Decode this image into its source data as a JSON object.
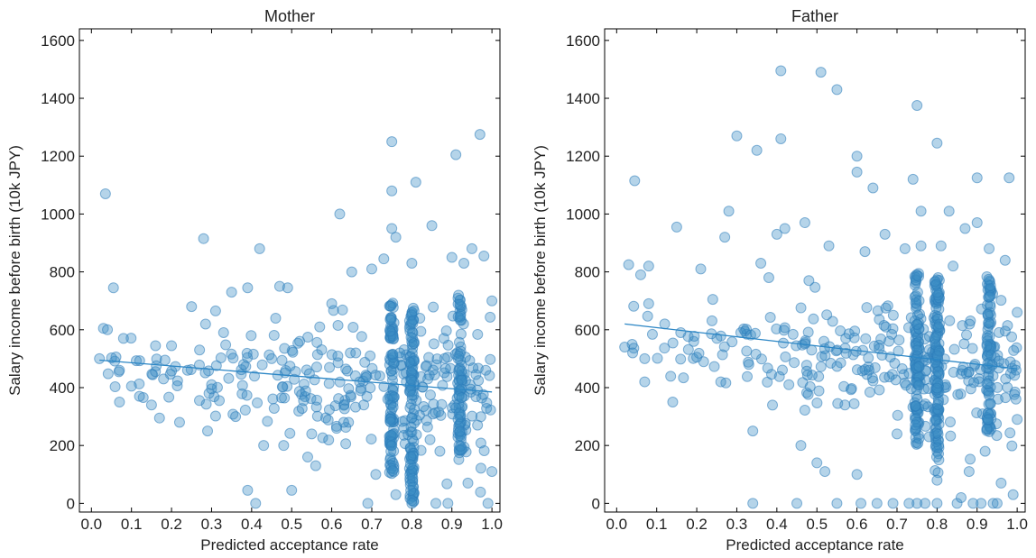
{
  "chart_data": [
    {
      "type": "scatter",
      "title": "Mother",
      "xlabel": "Predicted acceptance rate",
      "ylabel": "Salary income before birth (10k JPY)",
      "xlim": [
        -0.03,
        1.02
      ],
      "ylim": [
        -30,
        1640
      ],
      "xticks": [
        "0.0",
        "0.1",
        "0.2",
        "0.3",
        "0.4",
        "0.5",
        "0.6",
        "0.7",
        "0.8",
        "0.9",
        "1.0"
      ],
      "yticks": [
        "0",
        "200",
        "400",
        "600",
        "800",
        "1000",
        "1200",
        "1400",
        "1600"
      ],
      "grid": false,
      "color": "#3d8fc6",
      "trend_line": {
        "x": [
          0.02,
          1.0
        ],
        "y": [
          495,
          385
        ]
      },
      "points": [
        {
          "x": 0.02,
          "y": 500
        },
        {
          "x": 0.03,
          "y": 605
        },
        {
          "x": 0.035,
          "y": 1070
        },
        {
          "x": 0.04,
          "y": 600
        },
        {
          "x": 0.055,
          "y": 745
        },
        {
          "x": 0.07,
          "y": 460
        },
        {
          "x": 0.07,
          "y": 350
        },
        {
          "x": 0.08,
          "y": 570
        },
        {
          "x": 0.1,
          "y": 405
        },
        {
          "x": 0.12,
          "y": 370
        },
        {
          "x": 0.15,
          "y": 340
        },
        {
          "x": 0.16,
          "y": 545
        },
        {
          "x": 0.17,
          "y": 295
        },
        {
          "x": 0.18,
          "y": 430
        },
        {
          "x": 0.2,
          "y": 545
        },
        {
          "x": 0.22,
          "y": 280
        },
        {
          "x": 0.24,
          "y": 460
        },
        {
          "x": 0.25,
          "y": 680
        },
        {
          "x": 0.27,
          "y": 530
        },
        {
          "x": 0.28,
          "y": 915
        },
        {
          "x": 0.29,
          "y": 250
        },
        {
          "x": 0.3,
          "y": 410
        },
        {
          "x": 0.31,
          "y": 665
        },
        {
          "x": 0.33,
          "y": 590
        },
        {
          "x": 0.35,
          "y": 730
        },
        {
          "x": 0.36,
          "y": 300
        },
        {
          "x": 0.38,
          "y": 480
        },
        {
          "x": 0.39,
          "y": 745
        },
        {
          "x": 0.39,
          "y": 45
        },
        {
          "x": 0.41,
          "y": 0
        },
        {
          "x": 0.42,
          "y": 880
        },
        {
          "x": 0.43,
          "y": 200
        },
        {
          "x": 0.45,
          "y": 500
        },
        {
          "x": 0.46,
          "y": 640
        },
        {
          "x": 0.47,
          "y": 750
        },
        {
          "x": 0.48,
          "y": 200
        },
        {
          "x": 0.49,
          "y": 745
        },
        {
          "x": 0.5,
          "y": 45
        },
        {
          "x": 0.52,
          "y": 560
        },
        {
          "x": 0.54,
          "y": 160
        },
        {
          "x": 0.55,
          "y": 240
        },
        {
          "x": 0.56,
          "y": 130
        },
        {
          "x": 0.57,
          "y": 610
        },
        {
          "x": 0.6,
          "y": 690
        },
        {
          "x": 0.62,
          "y": 1000
        },
        {
          "x": 0.63,
          "y": 280
        },
        {
          "x": 0.65,
          "y": 800
        },
        {
          "x": 0.66,
          "y": 520
        },
        {
          "x": 0.68,
          "y": 340
        },
        {
          "x": 0.69,
          "y": 0
        },
        {
          "x": 0.7,
          "y": 810
        },
        {
          "x": 0.71,
          "y": 100
        },
        {
          "x": 0.72,
          "y": 440
        },
        {
          "x": 0.73,
          "y": 845
        },
        {
          "x": 0.74,
          "y": 360
        },
        {
          "x": 0.75,
          "y": 1250
        },
        {
          "x": 0.75,
          "y": 1080
        },
        {
          "x": 0.75,
          "y": 950
        },
        {
          "x": 0.76,
          "y": 920
        },
        {
          "x": 0.76,
          "y": 30
        },
        {
          "x": 0.77,
          "y": 520
        },
        {
          "x": 0.78,
          "y": 260
        },
        {
          "x": 0.8,
          "y": 0
        },
        {
          "x": 0.8,
          "y": 830
        },
        {
          "x": 0.81,
          "y": 1110
        },
        {
          "x": 0.82,
          "y": 640
        },
        {
          "x": 0.84,
          "y": 430
        },
        {
          "x": 0.85,
          "y": 960
        },
        {
          "x": 0.86,
          "y": 0
        },
        {
          "x": 0.87,
          "y": 180
        },
        {
          "x": 0.88,
          "y": 570
        },
        {
          "x": 0.89,
          "y": 0
        },
        {
          "x": 0.9,
          "y": 850
        },
        {
          "x": 0.91,
          "y": 1205
        },
        {
          "x": 0.91,
          "y": 330
        },
        {
          "x": 0.92,
          "y": 250
        },
        {
          "x": 0.93,
          "y": 830
        },
        {
          "x": 0.94,
          "y": 70
        },
        {
          "x": 0.95,
          "y": 880
        },
        {
          "x": 0.96,
          "y": 445
        },
        {
          "x": 0.97,
          "y": 1275
        },
        {
          "x": 0.98,
          "y": 855
        },
        {
          "x": 0.99,
          "y": 0
        },
        {
          "x": 1.0,
          "y": 700
        },
        {
          "x": 1.0,
          "y": 110
        }
      ],
      "dense_columns": [
        {
          "x": 0.75,
          "ymin": 100,
          "ymax": 700,
          "n": 34
        },
        {
          "x": 0.8,
          "ymin": 0,
          "ymax": 680,
          "n": 40
        },
        {
          "x": 0.92,
          "ymin": 150,
          "ymax": 720,
          "n": 26
        }
      ]
    },
    {
      "type": "scatter",
      "title": "Father",
      "xlabel": "Predicted acceptance rate",
      "ylabel": "Salary income before birth (10k JPY)",
      "xlim": [
        -0.03,
        1.02
      ],
      "ylim": [
        -30,
        1640
      ],
      "xticks": [
        "0.0",
        "0.1",
        "0.2",
        "0.3",
        "0.4",
        "0.5",
        "0.6",
        "0.7",
        "0.8",
        "0.9",
        "1.0"
      ],
      "yticks": [
        "0",
        "200",
        "400",
        "600",
        "800",
        "1000",
        "1200",
        "1400",
        "1600"
      ],
      "grid": false,
      "color": "#3d8fc6",
      "trend_line": {
        "x": [
          0.02,
          1.0
        ],
        "y": [
          620,
          465
        ]
      },
      "points": [
        {
          "x": 0.02,
          "y": 540
        },
        {
          "x": 0.03,
          "y": 825
        },
        {
          "x": 0.04,
          "y": 520
        },
        {
          "x": 0.045,
          "y": 1115
        },
        {
          "x": 0.06,
          "y": 790
        },
        {
          "x": 0.07,
          "y": 420
        },
        {
          "x": 0.07,
          "y": 500
        },
        {
          "x": 0.08,
          "y": 820
        },
        {
          "x": 0.08,
          "y": 690
        },
        {
          "x": 0.12,
          "y": 620
        },
        {
          "x": 0.14,
          "y": 350
        },
        {
          "x": 0.15,
          "y": 955
        },
        {
          "x": 0.16,
          "y": 590
        },
        {
          "x": 0.2,
          "y": 505
        },
        {
          "x": 0.21,
          "y": 810
        },
        {
          "x": 0.24,
          "y": 705
        },
        {
          "x": 0.26,
          "y": 420
        },
        {
          "x": 0.27,
          "y": 920
        },
        {
          "x": 0.28,
          "y": 1010
        },
        {
          "x": 0.3,
          "y": 1270
        },
        {
          "x": 0.31,
          "y": 590
        },
        {
          "x": 0.33,
          "y": 480
        },
        {
          "x": 0.34,
          "y": 0
        },
        {
          "x": 0.34,
          "y": 250
        },
        {
          "x": 0.35,
          "y": 1220
        },
        {
          "x": 0.36,
          "y": 830
        },
        {
          "x": 0.38,
          "y": 780
        },
        {
          "x": 0.4,
          "y": 930
        },
        {
          "x": 0.41,
          "y": 1495
        },
        {
          "x": 0.41,
          "y": 1260
        },
        {
          "x": 0.42,
          "y": 950
        },
        {
          "x": 0.43,
          "y": 410
        },
        {
          "x": 0.45,
          "y": 0
        },
        {
          "x": 0.46,
          "y": 200
        },
        {
          "x": 0.47,
          "y": 970
        },
        {
          "x": 0.48,
          "y": 770
        },
        {
          "x": 0.5,
          "y": 140
        },
        {
          "x": 0.51,
          "y": 1490
        },
        {
          "x": 0.52,
          "y": 110
        },
        {
          "x": 0.53,
          "y": 890
        },
        {
          "x": 0.55,
          "y": 1430
        },
        {
          "x": 0.55,
          "y": 0
        },
        {
          "x": 0.57,
          "y": 340
        },
        {
          "x": 0.6,
          "y": 1200
        },
        {
          "x": 0.6,
          "y": 1145
        },
        {
          "x": 0.6,
          "y": 100
        },
        {
          "x": 0.61,
          "y": 0
        },
        {
          "x": 0.62,
          "y": 870
        },
        {
          "x": 0.63,
          "y": 460
        },
        {
          "x": 0.64,
          "y": 1090
        },
        {
          "x": 0.65,
          "y": 0
        },
        {
          "x": 0.67,
          "y": 930
        },
        {
          "x": 0.68,
          "y": 560
        },
        {
          "x": 0.69,
          "y": 0
        },
        {
          "x": 0.7,
          "y": 240
        },
        {
          "x": 0.72,
          "y": 880
        },
        {
          "x": 0.73,
          "y": 0
        },
        {
          "x": 0.74,
          "y": 1120
        },
        {
          "x": 0.75,
          "y": 1375
        },
        {
          "x": 0.75,
          "y": 0
        },
        {
          "x": 0.76,
          "y": 1010
        },
        {
          "x": 0.76,
          "y": 890
        },
        {
          "x": 0.77,
          "y": 0
        },
        {
          "x": 0.78,
          "y": 230
        },
        {
          "x": 0.8,
          "y": 1245
        },
        {
          "x": 0.8,
          "y": 0
        },
        {
          "x": 0.8,
          "y": 80
        },
        {
          "x": 0.81,
          "y": 890
        },
        {
          "x": 0.83,
          "y": 1010
        },
        {
          "x": 0.84,
          "y": 820
        },
        {
          "x": 0.85,
          "y": 0
        },
        {
          "x": 0.86,
          "y": 20
        },
        {
          "x": 0.87,
          "y": 950
        },
        {
          "x": 0.88,
          "y": 110
        },
        {
          "x": 0.89,
          "y": 0
        },
        {
          "x": 0.9,
          "y": 1125
        },
        {
          "x": 0.9,
          "y": 970
        },
        {
          "x": 0.91,
          "y": 0
        },
        {
          "x": 0.92,
          "y": 180
        },
        {
          "x": 0.93,
          "y": 880
        },
        {
          "x": 0.94,
          "y": 0
        },
        {
          "x": 0.95,
          "y": 0
        },
        {
          "x": 0.96,
          "y": 70
        },
        {
          "x": 0.97,
          "y": 840
        },
        {
          "x": 0.98,
          "y": 1125
        },
        {
          "x": 0.99,
          "y": 30
        },
        {
          "x": 1.0,
          "y": 660
        },
        {
          "x": 1.0,
          "y": 290
        }
      ],
      "dense_columns": [
        {
          "x": 0.75,
          "ymin": 200,
          "ymax": 800,
          "n": 36
        },
        {
          "x": 0.8,
          "ymin": 100,
          "ymax": 780,
          "n": 44
        },
        {
          "x": 0.93,
          "ymin": 250,
          "ymax": 800,
          "n": 28
        }
      ]
    }
  ]
}
